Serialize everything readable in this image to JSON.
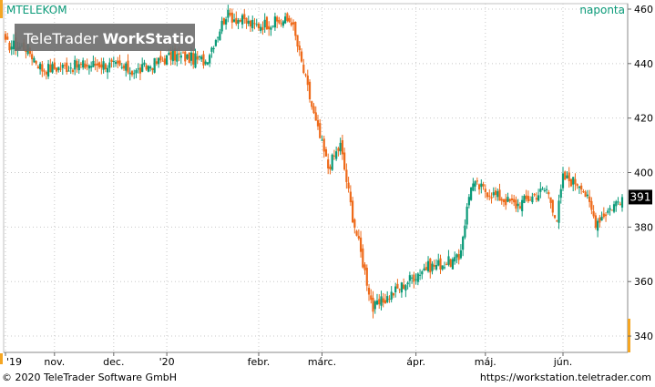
{
  "header": {
    "symbol": "MTELEKOM",
    "period": "naponta"
  },
  "watermark": {
    "brand_light": "TeleTrader",
    "brand_bold": "WorkStation"
  },
  "last_price_label": "391",
  "footer": {
    "copyright": "© 2020 TeleTrader Software GmbH",
    "url": "https://workstation.teletrader.com"
  },
  "colors": {
    "up": "#0a9a78",
    "down": "#ee6a1a",
    "accent": "#f5a623",
    "text_teal": "#0a9a78",
    "grid": "#c8c8c8"
  },
  "chart_data": {
    "type": "candlestick",
    "title": "MTELEKOM",
    "xlabel": "",
    "ylabel": "",
    "ylim": [
      334,
      462
    ],
    "y_ticks": [
      340,
      360,
      380,
      400,
      420,
      440,
      460
    ],
    "x_tick_labels": [
      {
        "label": "'19",
        "day": 0
      },
      {
        "label": "nov.",
        "day": 24
      },
      {
        "label": "dec.",
        "day": 53
      },
      {
        "label": "'20",
        "day": 79
      },
      {
        "label": "febr.",
        "day": 124
      },
      {
        "label": "márc.",
        "day": 155
      },
      {
        "label": "ápr.",
        "day": 201
      },
      {
        "label": "máj.",
        "day": 235
      },
      {
        "label": "jún.",
        "day": 273
      }
    ],
    "x_range_days": [
      0,
      302
    ],
    "last_close": 391,
    "segments": [
      {
        "from": 0,
        "to": 10,
        "start": 447,
        "end": 446
      },
      {
        "from": 10,
        "to": 18,
        "start": 446,
        "end": 438
      },
      {
        "from": 18,
        "to": 48,
        "start": 438,
        "end": 440
      },
      {
        "from": 48,
        "to": 64,
        "start": 440,
        "end": 437
      },
      {
        "from": 64,
        "to": 82,
        "start": 437,
        "end": 443
      },
      {
        "from": 82,
        "to": 98,
        "start": 443,
        "end": 441
      },
      {
        "from": 98,
        "to": 108,
        "start": 441,
        "end": 458
      },
      {
        "from": 108,
        "to": 122,
        "start": 458,
        "end": 454
      },
      {
        "from": 122,
        "to": 140,
        "start": 454,
        "end": 456
      },
      {
        "from": 140,
        "to": 152,
        "start": 456,
        "end": 418
      },
      {
        "from": 152,
        "to": 158,
        "start": 418,
        "end": 402
      },
      {
        "from": 158,
        "to": 164,
        "start": 402,
        "end": 410
      },
      {
        "from": 164,
        "to": 170,
        "start": 410,
        "end": 384
      },
      {
        "from": 170,
        "to": 180,
        "start": 384,
        "end": 350
      },
      {
        "from": 180,
        "to": 205,
        "start": 350,
        "end": 365
      },
      {
        "from": 205,
        "to": 222,
        "start": 365,
        "end": 368
      },
      {
        "from": 222,
        "to": 228,
        "start": 368,
        "end": 396
      },
      {
        "from": 228,
        "to": 250,
        "start": 396,
        "end": 388
      },
      {
        "from": 250,
        "to": 265,
        "start": 388,
        "end": 394
      },
      {
        "from": 265,
        "to": 270,
        "start": 394,
        "end": 383
      },
      {
        "from": 270,
        "to": 273,
        "start": 383,
        "end": 398
      },
      {
        "from": 273,
        "to": 282,
        "start": 398,
        "end": 396
      },
      {
        "from": 282,
        "to": 289,
        "start": 396,
        "end": 382
      },
      {
        "from": 289,
        "to": 302,
        "start": 382,
        "end": 391
      }
    ]
  }
}
